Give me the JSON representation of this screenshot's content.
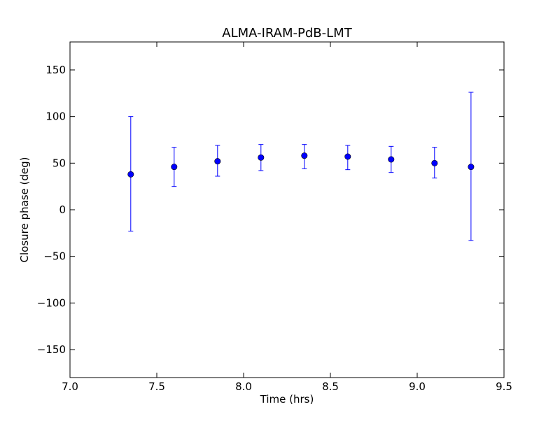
{
  "chart_data": {
    "type": "scatter",
    "title": "ALMA-IRAM-PdB-LMT",
    "xlabel": "Time (hrs)",
    "ylabel": "Closure phase (deg)",
    "xlim": [
      7.0,
      9.5
    ],
    "ylim": [
      -180,
      180
    ],
    "xticks": [
      7.0,
      7.5,
      8.0,
      8.5,
      9.0,
      9.5
    ],
    "xtick_labels": [
      "7.0",
      "7.5",
      "8.0",
      "8.5",
      "9.0",
      "9.5"
    ],
    "yticks": [
      -150,
      -100,
      -50,
      0,
      50,
      100,
      150
    ],
    "ytick_labels": [
      "−150",
      "−100",
      "−50",
      "0",
      "50",
      "100",
      "150"
    ],
    "grid": false,
    "legend": "none",
    "colors": {
      "marker": "#0000ff",
      "errorbar": "#0000ff"
    },
    "points": [
      {
        "x": 7.35,
        "y": 38,
        "yerr_low": -23,
        "yerr_high": 100
      },
      {
        "x": 7.6,
        "y": 46,
        "yerr_low": 25,
        "yerr_high": 67
      },
      {
        "x": 7.85,
        "y": 52,
        "yerr_low": 36,
        "yerr_high": 69
      },
      {
        "x": 8.1,
        "y": 56,
        "yerr_low": 42,
        "yerr_high": 70
      },
      {
        "x": 8.35,
        "y": 58,
        "yerr_low": 44,
        "yerr_high": 70
      },
      {
        "x": 8.6,
        "y": 57,
        "yerr_low": 43,
        "yerr_high": 69
      },
      {
        "x": 8.85,
        "y": 54,
        "yerr_low": 40,
        "yerr_high": 68
      },
      {
        "x": 9.1,
        "y": 50,
        "yerr_low": 34,
        "yerr_high": 67
      },
      {
        "x": 9.31,
        "y": 46,
        "yerr_low": -33,
        "yerr_high": 126
      }
    ]
  }
}
